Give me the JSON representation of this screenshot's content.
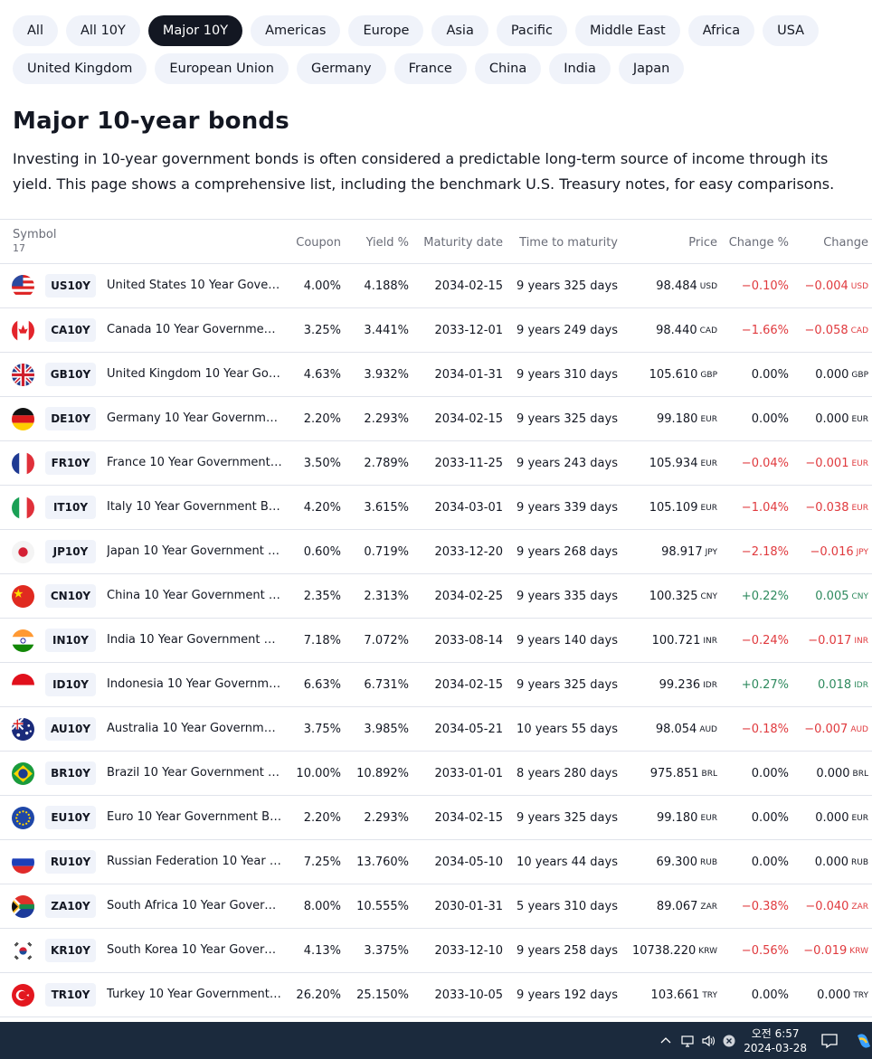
{
  "filters": {
    "row1": [
      "All",
      "All 10Y",
      "Major 10Y",
      "Americas",
      "Europe",
      "Asia",
      "Pacific",
      "Middle East",
      "Africa",
      "USA"
    ],
    "row2": [
      "United Kingdom",
      "European Union",
      "Germany",
      "France",
      "China",
      "India",
      "Japan"
    ],
    "active": "Major 10Y"
  },
  "page": {
    "title": "Major 10-year bonds",
    "description": "Investing in 10-year government bonds is often considered a predictable long-term source of income through its yield. This page shows a comprehensive list, including the benchmark U.S. Treasury notes, for easy comparisons."
  },
  "table": {
    "headers": {
      "symbol": "Symbol",
      "count": "17",
      "coupon": "Coupon",
      "yield": "Yield %",
      "maturity": "Maturity date",
      "time": "Time to maturity",
      "price": "Price",
      "change_pct": "Change %",
      "change": "Change"
    },
    "rows": [
      {
        "flag": "us-flag-icon",
        "symbol": "US10Y",
        "name": "United States 10 Year Gover…",
        "coupon": "4.00%",
        "yield": "4.188%",
        "maturity": "2034-02-15",
        "time": "9 years 325 days",
        "price": "98.484",
        "currency": "USD",
        "change_pct": "−0.10%",
        "change": "−0.004",
        "dir": "neg"
      },
      {
        "flag": "ca-flag-icon",
        "symbol": "CA10Y",
        "name": "Canada 10 Year Government …",
        "coupon": "3.25%",
        "yield": "3.441%",
        "maturity": "2033-12-01",
        "time": "9 years 249 days",
        "price": "98.440",
        "currency": "CAD",
        "change_pct": "−1.66%",
        "change": "−0.058",
        "dir": "neg"
      },
      {
        "flag": "gb-flag-icon",
        "symbol": "GB10Y",
        "name": "United Kingdom 10 Year Gov…",
        "coupon": "4.63%",
        "yield": "3.932%",
        "maturity": "2034-01-31",
        "time": "9 years 310 days",
        "price": "105.610",
        "currency": "GBP",
        "change_pct": "0.00%",
        "change": "0.000",
        "dir": "flat"
      },
      {
        "flag": "de-flag-icon",
        "symbol": "DE10Y",
        "name": "Germany 10 Year Governmen…",
        "coupon": "2.20%",
        "yield": "2.293%",
        "maturity": "2034-02-15",
        "time": "9 years 325 days",
        "price": "99.180",
        "currency": "EUR",
        "change_pct": "0.00%",
        "change": "0.000",
        "dir": "flat"
      },
      {
        "flag": "fr-flag-icon",
        "symbol": "FR10Y",
        "name": "France 10 Year Government …",
        "coupon": "3.50%",
        "yield": "2.789%",
        "maturity": "2033-11-25",
        "time": "9 years 243 days",
        "price": "105.934",
        "currency": "EUR",
        "change_pct": "−0.04%",
        "change": "−0.001",
        "dir": "neg"
      },
      {
        "flag": "it-flag-icon",
        "symbol": "IT10Y",
        "name": "Italy 10 Year Government Bo…",
        "coupon": "4.20%",
        "yield": "3.615%",
        "maturity": "2034-03-01",
        "time": "9 years 339 days",
        "price": "105.109",
        "currency": "EUR",
        "change_pct": "−1.04%",
        "change": "−0.038",
        "dir": "neg"
      },
      {
        "flag": "jp-flag-icon",
        "symbol": "JP10Y",
        "name": "Japan 10 Year Government B…",
        "coupon": "0.60%",
        "yield": "0.719%",
        "maturity": "2033-12-20",
        "time": "9 years 268 days",
        "price": "98.917",
        "currency": "JPY",
        "change_pct": "−2.18%",
        "change": "−0.016",
        "dir": "neg"
      },
      {
        "flag": "cn-flag-icon",
        "symbol": "CN10Y",
        "name": "China 10 Year Government B…",
        "coupon": "2.35%",
        "yield": "2.313%",
        "maturity": "2034-02-25",
        "time": "9 years 335 days",
        "price": "100.325",
        "currency": "CNY",
        "change_pct": "+0.22%",
        "change": "0.005",
        "dir": "pos"
      },
      {
        "flag": "in-flag-icon",
        "symbol": "IN10Y",
        "name": "India 10 Year Government Bo…",
        "coupon": "7.18%",
        "yield": "7.072%",
        "maturity": "2033-08-14",
        "time": "9 years 140 days",
        "price": "100.721",
        "currency": "INR",
        "change_pct": "−0.24%",
        "change": "−0.017",
        "dir": "neg"
      },
      {
        "flag": "id-flag-icon",
        "symbol": "ID10Y",
        "name": "Indonesia 10 Year Governme…",
        "coupon": "6.63%",
        "yield": "6.731%",
        "maturity": "2034-02-15",
        "time": "9 years 325 days",
        "price": "99.236",
        "currency": "IDR",
        "change_pct": "+0.27%",
        "change": "0.018",
        "dir": "pos"
      },
      {
        "flag": "au-flag-icon",
        "symbol": "AU10Y",
        "name": "Australia 10 Year Governmen…",
        "coupon": "3.75%",
        "yield": "3.985%",
        "maturity": "2034-05-21",
        "time": "10 years 55 days",
        "price": "98.054",
        "currency": "AUD",
        "change_pct": "−0.18%",
        "change": "−0.007",
        "dir": "neg"
      },
      {
        "flag": "br-flag-icon",
        "symbol": "BR10Y",
        "name": "Brazil 10 Year Government B…",
        "coupon": "10.00%",
        "yield": "10.892%",
        "maturity": "2033-01-01",
        "time": "8 years 280 days",
        "price": "975.851",
        "currency": "BRL",
        "change_pct": "0.00%",
        "change": "0.000",
        "dir": "flat"
      },
      {
        "flag": "eu-flag-icon",
        "symbol": "EU10Y",
        "name": "Euro 10 Year Government Bo…",
        "coupon": "2.20%",
        "yield": "2.293%",
        "maturity": "2034-02-15",
        "time": "9 years 325 days",
        "price": "99.180",
        "currency": "EUR",
        "change_pct": "0.00%",
        "change": "0.000",
        "dir": "flat"
      },
      {
        "flag": "ru-flag-icon",
        "symbol": "RU10Y",
        "name": "Russian Federation 10 Year G…",
        "coupon": "7.25%",
        "yield": "13.760%",
        "maturity": "2034-05-10",
        "time": "10 years 44 days",
        "price": "69.300",
        "currency": "RUB",
        "change_pct": "0.00%",
        "change": "0.000",
        "dir": "flat"
      },
      {
        "flag": "za-flag-icon",
        "symbol": "ZA10Y",
        "name": "South Africa 10 Year Govern…",
        "coupon": "8.00%",
        "yield": "10.555%",
        "maturity": "2030-01-31",
        "time": "5 years 310 days",
        "price": "89.067",
        "currency": "ZAR",
        "change_pct": "−0.38%",
        "change": "−0.040",
        "dir": "neg"
      },
      {
        "flag": "kr-flag-icon",
        "symbol": "KR10Y",
        "name": "South Korea 10 Year Govern…",
        "coupon": "4.13%",
        "yield": "3.375%",
        "maturity": "2033-12-10",
        "time": "9 years 258 days",
        "price": "10738.220",
        "currency": "KRW",
        "change_pct": "−0.56%",
        "change": "−0.019",
        "dir": "neg"
      },
      {
        "flag": "tr-flag-icon",
        "symbol": "TR10Y",
        "name": "Turkey 10 Year Government …",
        "coupon": "26.20%",
        "yield": "25.150%",
        "maturity": "2033-10-05",
        "time": "9 years 192 days",
        "price": "103.661",
        "currency": "TRY",
        "change_pct": "0.00%",
        "change": "0.000",
        "dir": "flat"
      }
    ]
  },
  "taskbar": {
    "time": "오전 6:57",
    "date": "2024-03-28",
    "icons": [
      "chevron-up-icon",
      "network-icon",
      "volume-icon",
      "mute-badge-icon",
      "notification-icon",
      "copilot-icon"
    ]
  }
}
